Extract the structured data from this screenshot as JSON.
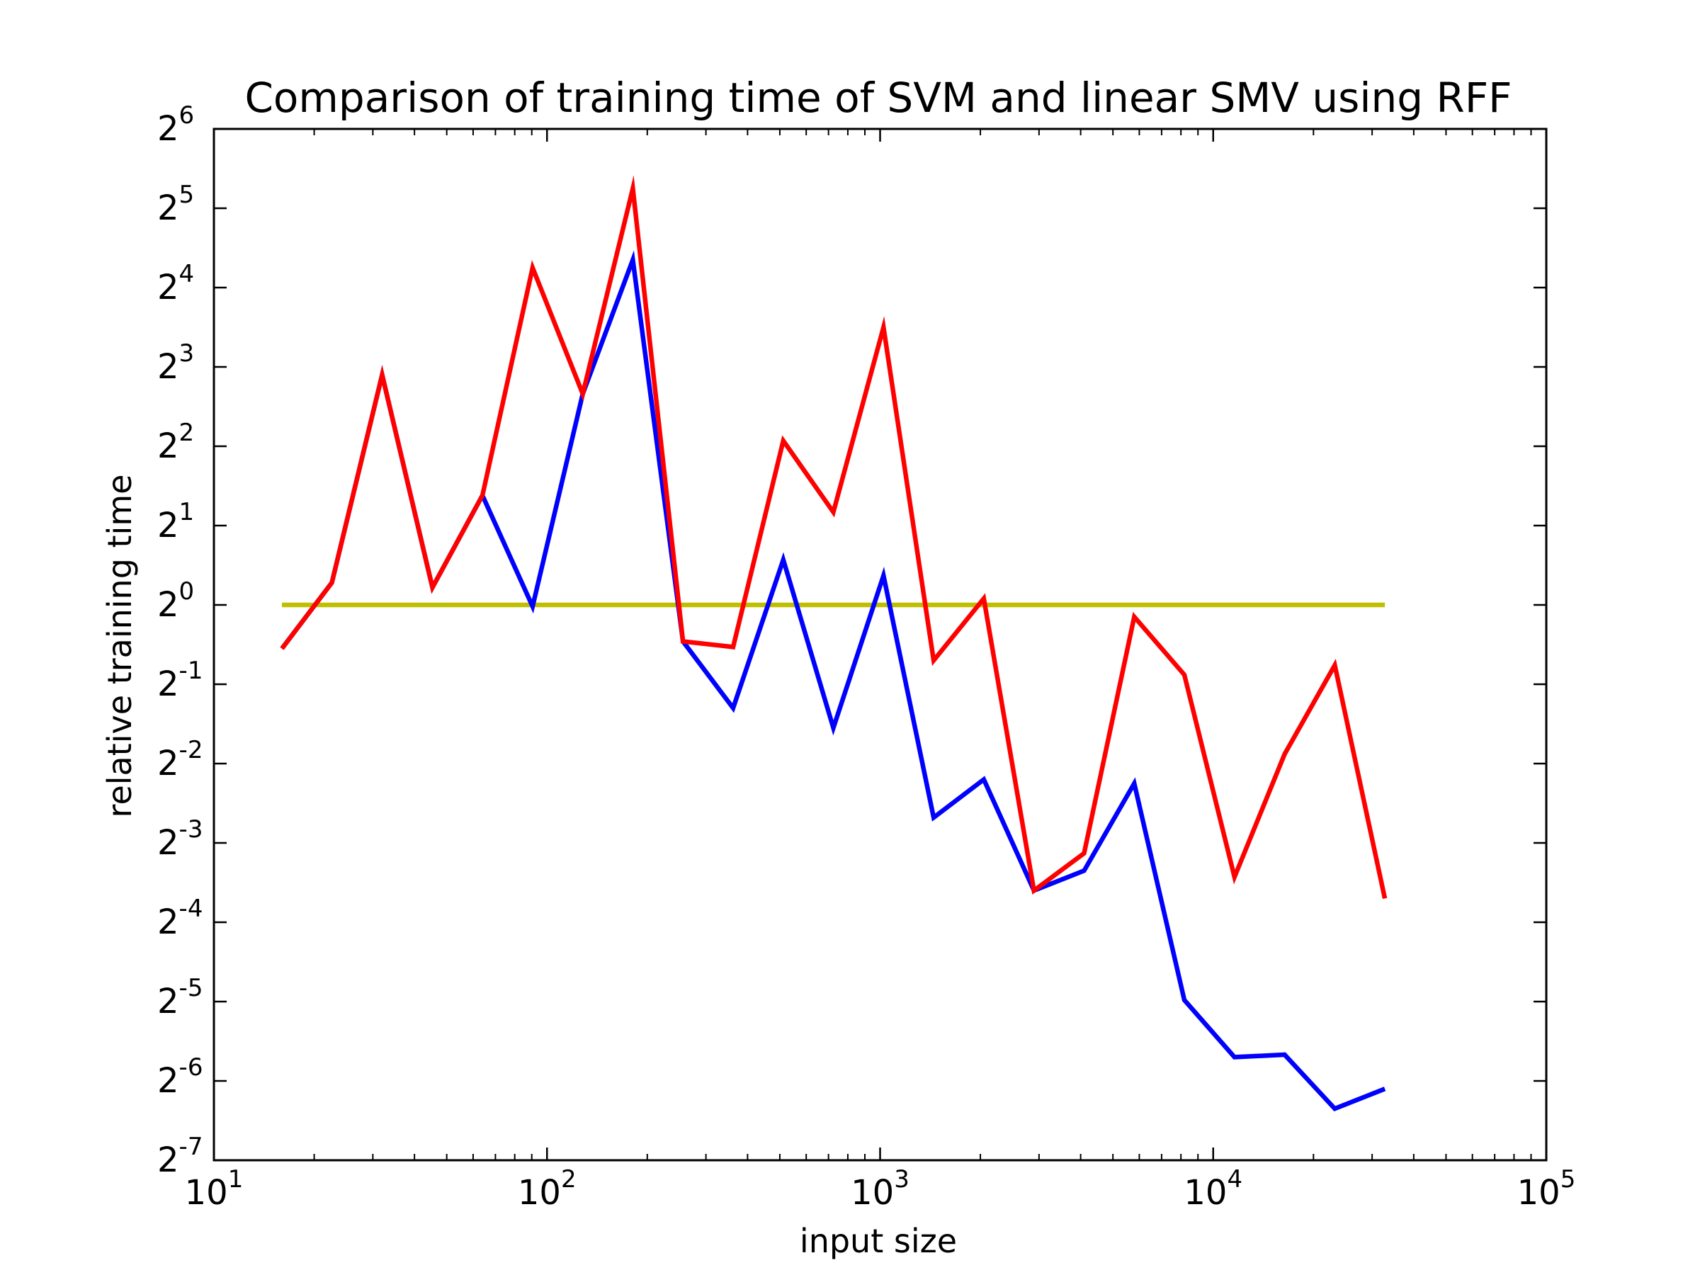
{
  "chart_data": {
    "type": "line",
    "title": "Comparison of training time of SVM and linear SMV using RFF",
    "xlabel": "input size",
    "ylabel": "relative training time",
    "xscale": "log10",
    "yscale": "log2",
    "xlim": [
      10,
      100000
    ],
    "ylim_log2": [
      -7,
      6
    ],
    "grid": false,
    "legend": "none",
    "x_ticks": [
      {
        "base": "10",
        "exp": "1",
        "value": 10
      },
      {
        "base": "10",
        "exp": "2",
        "value": 100
      },
      {
        "base": "10",
        "exp": "3",
        "value": 1000
      },
      {
        "base": "10",
        "exp": "4",
        "value": 10000
      },
      {
        "base": "10",
        "exp": "5",
        "value": 100000
      }
    ],
    "y_ticks": [
      {
        "base": "2",
        "exp": "-7",
        "value": -7
      },
      {
        "base": "2",
        "exp": "-6",
        "value": -6
      },
      {
        "base": "2",
        "exp": "-5",
        "value": -5
      },
      {
        "base": "2",
        "exp": "-4",
        "value": -4
      },
      {
        "base": "2",
        "exp": "-3",
        "value": -3
      },
      {
        "base": "2",
        "exp": "-2",
        "value": -2
      },
      {
        "base": "2",
        "exp": "-1",
        "value": -1
      },
      {
        "base": "2",
        "exp": "0",
        "value": 0
      },
      {
        "base": "2",
        "exp": "1",
        "value": 1
      },
      {
        "base": "2",
        "exp": "2",
        "value": 2
      },
      {
        "base": "2",
        "exp": "3",
        "value": 3
      },
      {
        "base": "2",
        "exp": "4",
        "value": 4
      },
      {
        "base": "2",
        "exp": "5",
        "value": 5
      },
      {
        "base": "2",
        "exp": "6",
        "value": 6
      }
    ],
    "x": [
      16,
      22.6,
      32,
      45.3,
      64,
      90.5,
      128,
      181,
      256,
      362,
      512,
      724,
      1024,
      1448,
      2048,
      2896,
      4096,
      5793,
      8192,
      11585,
      16384,
      23170,
      32768
    ],
    "series": [
      {
        "color": "#ffffff",
        "log2_values": [
          -0.55,
          0.28,
          2.9,
          0.22,
          1.38,
          -0.02,
          2.66,
          4.35,
          -0.46,
          -1.3,
          0.57,
          -1.55,
          0.37,
          -2.68,
          -2.2,
          -3.6,
          -3.35,
          -2.25,
          -4.98,
          -5.7,
          -5.67,
          -6.35,
          -6.1
        ]
      },
      {
        "color": "#0000ff",
        "log2_values": [
          -0.55,
          0.28,
          2.9,
          0.22,
          1.38,
          -0.02,
          2.66,
          4.35,
          -0.46,
          -1.3,
          0.57,
          -1.55,
          0.37,
          -2.68,
          -2.2,
          -3.6,
          -3.35,
          -2.25,
          -4.98,
          -5.7,
          -5.67,
          -6.35,
          -6.1
        ]
      },
      {
        "color": "#ff0000",
        "log2_values": [
          -0.55,
          0.28,
          2.9,
          0.22,
          1.38,
          4.25,
          2.66,
          5.25,
          -0.46,
          -0.53,
          2.07,
          1.17,
          3.5,
          -0.7,
          0.08,
          -3.6,
          -3.13,
          -0.15,
          -0.88,
          -3.43,
          -1.88,
          -0.76,
          -3.7
        ]
      },
      {
        "color": "#bfbf00",
        "log2_values": [
          0,
          0,
          0,
          0,
          0,
          0,
          0,
          0,
          0,
          0,
          0,
          0,
          0,
          0,
          0,
          0,
          0,
          0,
          0,
          0,
          0,
          0,
          0
        ]
      }
    ]
  }
}
